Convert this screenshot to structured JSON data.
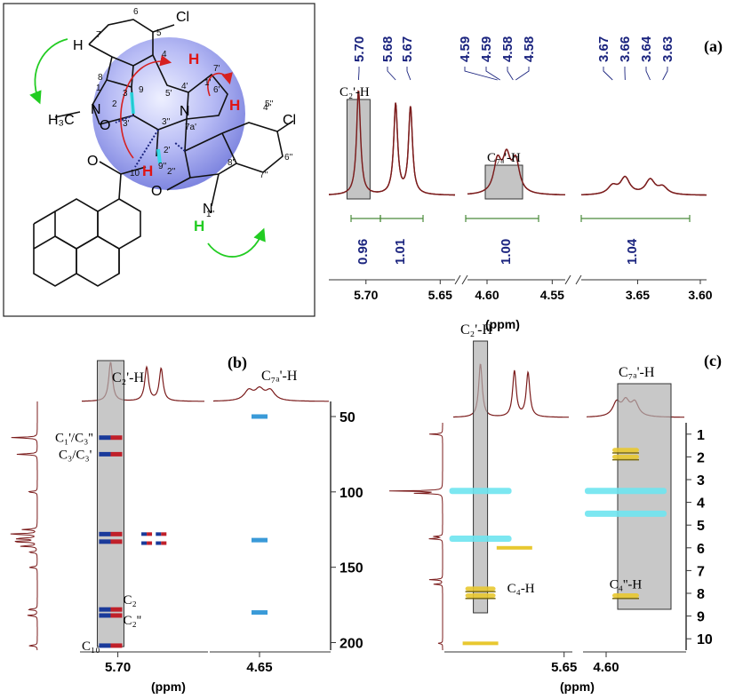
{
  "structure": {
    "atoms": {
      "cl1": "Cl",
      "cl2": "Cl",
      "h7": "H",
      "h3c": "H₃C",
      "n1": "N",
      "n1pp": "N",
      "n4p": "N",
      "h_red1": "H",
      "h_red2": "H",
      "h_red3": "H",
      "h_green": "H",
      "o2": "O",
      "o10": "O",
      "o2pp": "O"
    },
    "locants": [
      "6",
      "5",
      "7",
      "4",
      "8",
      "9",
      "1",
      "3",
      "2",
      "3'",
      "5'",
      "4'",
      "7a'",
      "6'",
      "7'",
      "1'",
      "2'",
      "3''",
      "9''",
      "4''",
      "5''",
      "6''",
      "7''",
      "8''",
      "2''",
      "1''",
      "10"
    ]
  },
  "colors": {
    "line": "#7b1c1c",
    "navy": "#1a237e",
    "green": "#4a8a3a",
    "gray": "#b0b0b0",
    "cyan": "#6ee4f0",
    "yellow": "#e8c830",
    "blue": "#1a3a9a",
    "red": "#c0202a"
  },
  "chart_data": [
    {
      "panel": "(a)",
      "type": "line",
      "title": "",
      "xlabel": "(ppm)",
      "x_ticks": [
        "5.70",
        "5.65",
        "4.60",
        "4.55",
        "3.65",
        "3.60"
      ],
      "segments": [
        {
          "range": [
            5.64,
            5.725
          ],
          "peaks": [
            {
              "ppm": 5.705,
              "height": 1.0
            },
            {
              "ppm": 5.68,
              "height": 0.86
            },
            {
              "ppm": 5.67,
              "height": 0.83
            }
          ]
        },
        {
          "range": [
            4.54,
            4.615
          ],
          "peaks": [
            {
              "ppm": 4.592,
              "height": 0.3
            },
            {
              "ppm": 4.585,
              "height": 0.32
            },
            {
              "ppm": 4.578,
              "height": 0.3
            }
          ]
        },
        {
          "range": [
            3.595,
            3.695
          ],
          "peaks": [
            {
              "ppm": 3.67,
              "height": 0.08
            },
            {
              "ppm": 3.66,
              "height": 0.16
            },
            {
              "ppm": 3.64,
              "height": 0.14
            },
            {
              "ppm": 3.63,
              "height": 0.07
            }
          ]
        }
      ],
      "peak_labels": [
        "5.70",
        "5.68",
        "5.67",
        "4.59",
        "4.59",
        "4.58",
        "4.58",
        "3.67",
        "3.66",
        "3.64",
        "3.63"
      ],
      "integrals": [
        "0.96",
        "1.01",
        "1.00",
        "1.04"
      ],
      "annotations": [
        "C₂'-H",
        "C₇ₐ'-H"
      ]
    },
    {
      "panel": "(b)",
      "type": "heatmap",
      "xlabel": "(ppm)",
      "x_ticks": [
        "5.70",
        "4.65"
      ],
      "y_ticks": [
        "50",
        "100",
        "150",
        "200"
      ],
      "ylim": [
        40,
        205
      ],
      "cross_peaks": [
        {
          "x": 5.705,
          "y": 64,
          "label": "C₁'/C₃''"
        },
        {
          "x": 5.705,
          "y": 75,
          "label": "C₃/C₃'"
        },
        {
          "x": 5.705,
          "y": 128,
          "label": ""
        },
        {
          "x": 5.705,
          "y": 133,
          "label": ""
        },
        {
          "x": 5.705,
          "y": 178,
          "label": "C₂"
        },
        {
          "x": 5.705,
          "y": 182,
          "label": "C₂''"
        },
        {
          "x": 5.705,
          "y": 202,
          "label": "C₁₀"
        },
        {
          "x": 4.585,
          "y": 50,
          "label": ""
        },
        {
          "x": 4.585,
          "y": 132,
          "label": ""
        },
        {
          "x": 4.585,
          "y": 180,
          "label": ""
        }
      ],
      "annotations": [
        "C₂'-H",
        "C₇ₐ'-H"
      ]
    },
    {
      "panel": "(c)",
      "type": "heatmap",
      "xlabel": "(ppm)",
      "x_ticks": [
        "5.65",
        "4.60"
      ],
      "y_ticks": [
        "1",
        "2",
        "3",
        "4",
        "5",
        "6",
        "7",
        "8",
        "9",
        "10"
      ],
      "ylim": [
        0.5,
        10.5
      ],
      "cross_peaks": [
        {
          "x": 5.705,
          "y": 3.5,
          "label": ""
        },
        {
          "x": 5.705,
          "y": 5.6,
          "label": ""
        },
        {
          "x": 5.705,
          "y": 7.8,
          "label": "C₄-H"
        },
        {
          "x": 5.705,
          "y": 8.1,
          "label": ""
        },
        {
          "x": 4.585,
          "y": 1.7,
          "label": ""
        },
        {
          "x": 4.585,
          "y": 2.0,
          "label": ""
        },
        {
          "x": 4.585,
          "y": 3.5,
          "label": ""
        },
        {
          "x": 4.585,
          "y": 4.5,
          "label": ""
        },
        {
          "x": 4.585,
          "y": 8.1,
          "label": "C₄''-H"
        }
      ],
      "annotations": [
        "C₂'-H",
        "C₇ₐ'-H"
      ]
    }
  ],
  "labels": {
    "panel_a": "(a)",
    "panel_b": "(b)",
    "panel_c": "(c)",
    "c2h": "C₂'-H",
    "c7h": "C₇ₐ'-H",
    "c1c3": "C₁'/C₃''",
    "c3c3": "C₃/C₃'",
    "c2": "C₂",
    "c2pp": "C₂''",
    "c10": "C₁₀",
    "c4h": "C₄-H",
    "c4pph": "C₄''-H",
    "ppm": "(ppm)"
  }
}
